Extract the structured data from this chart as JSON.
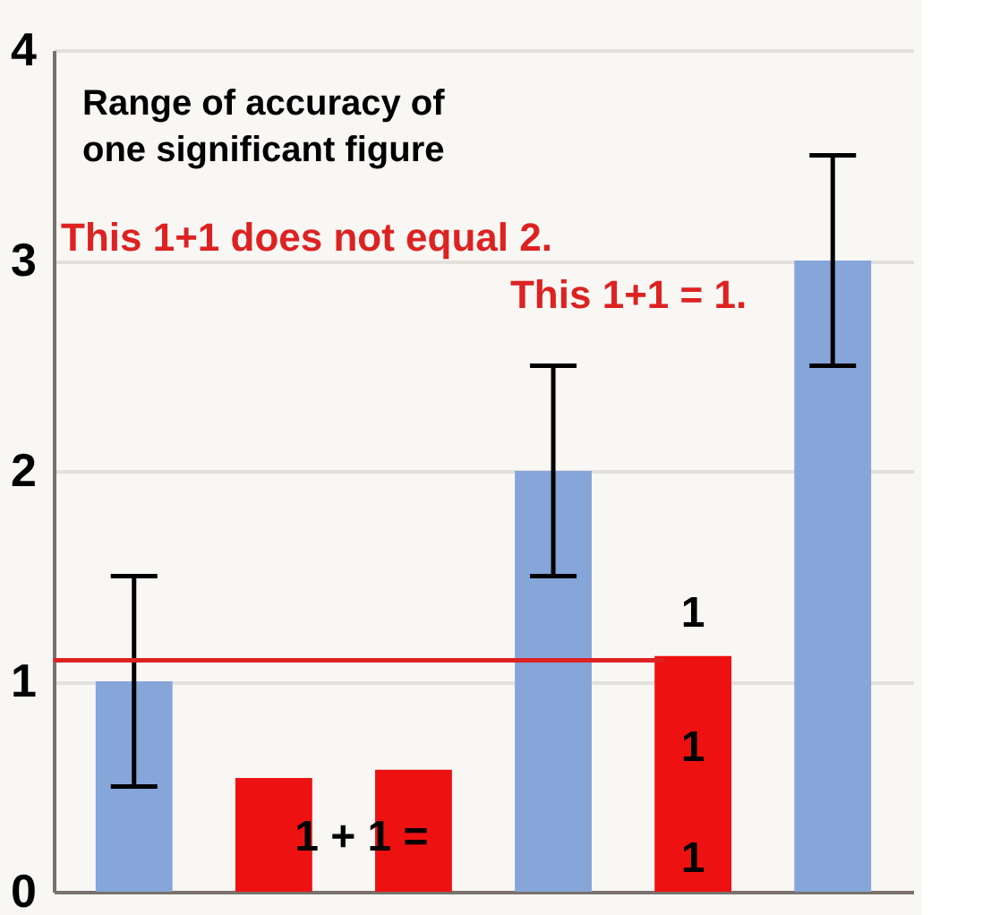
{
  "chart_data": {
    "type": "bar",
    "title": "Range of accuracy of one significant figure",
    "categories": [
      null,
      null,
      null,
      null,
      null,
      null
    ],
    "values": [
      1,
      0.54,
      0.58,
      2,
      1.12,
      3
    ],
    "colors": [
      "#86a5d9",
      "#ee1111",
      "#ee1111",
      "#86a5d9",
      "#ee1111",
      "#86a5d9"
    ],
    "errors": [
      0.5,
      null,
      null,
      0.5,
      null,
      0.5
    ],
    "ylim": [
      0,
      4
    ],
    "yticks": [
      0,
      1,
      2,
      3,
      4
    ],
    "grid": "y",
    "tick_labels": "y",
    "ref_lines": [
      {
        "axis": "y",
        "value": 1.1,
        "color": "#dd2222"
      }
    ],
    "annotations": [
      "This 1+1 does not equal 2.",
      "This 1+1 = 1.",
      "1 + 1 =",
      "1",
      "1",
      "1"
    ]
  }
}
